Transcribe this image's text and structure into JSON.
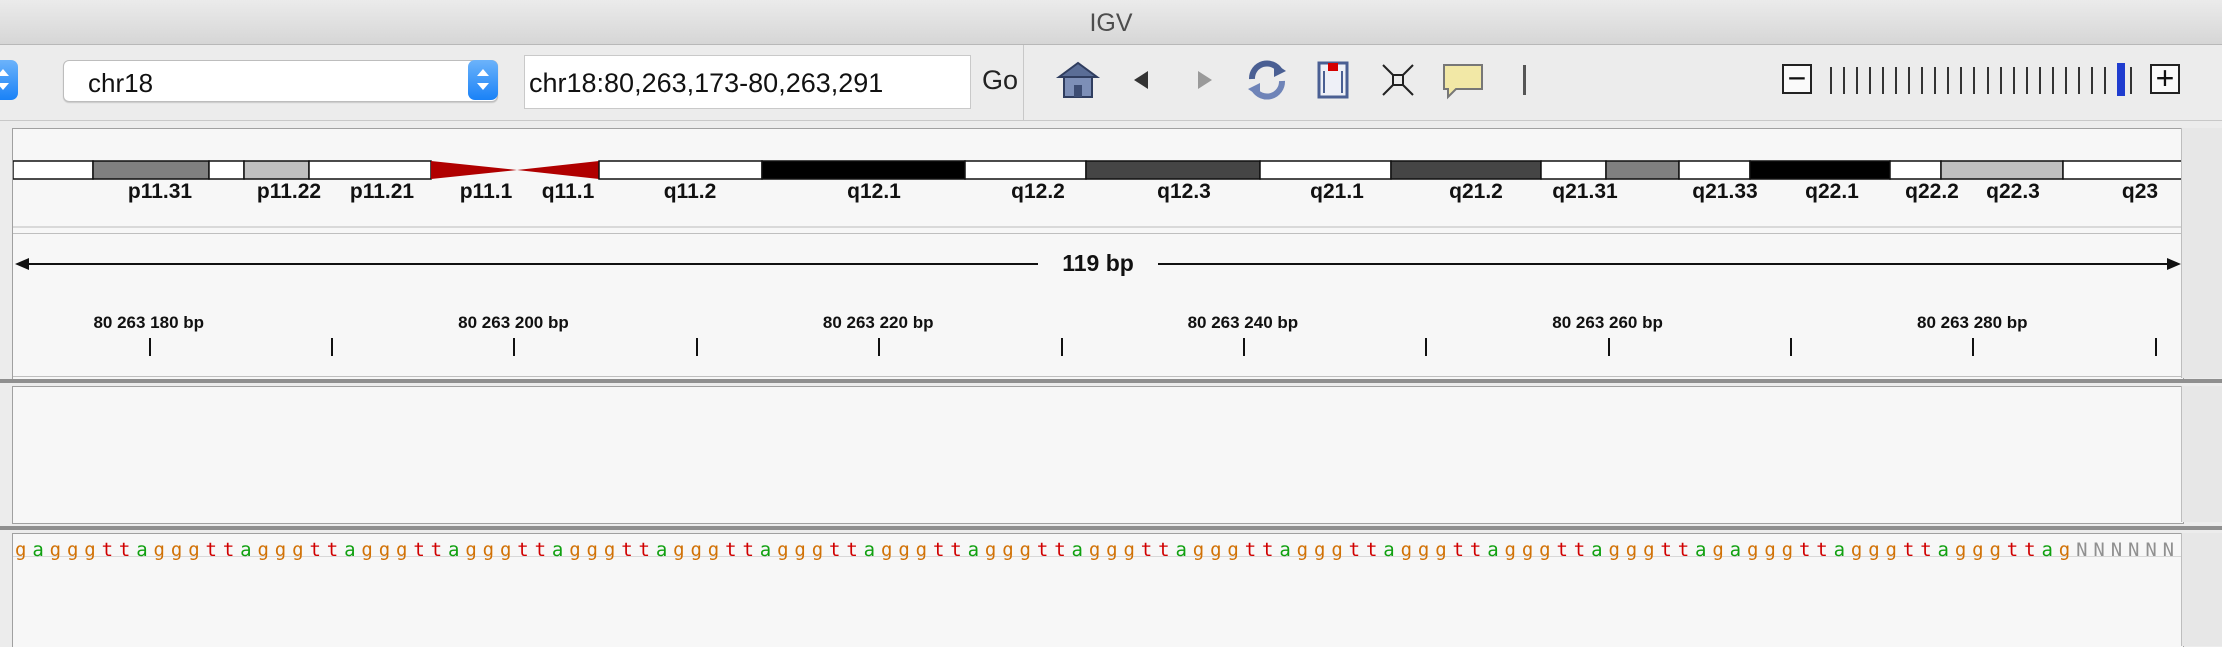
{
  "window": {
    "title": "IGV"
  },
  "toolbar": {
    "genome_value": "",
    "chromosome_value": "chr18",
    "locus_value": "chr18:80,263,173-80,263,291",
    "go_label": "Go",
    "icons": [
      "home-icon",
      "back-icon",
      "forward-icon",
      "refresh-icon",
      "region-icon",
      "resize-icon",
      "popup-icon"
    ],
    "zoom_out_label": "−",
    "zoom_in_label": "+",
    "zoom_level_fraction": 0.96
  },
  "ideogram": {
    "bands": [
      "p11.31",
      "p11.22",
      "p11.21",
      "p11.1",
      "q11.1",
      "q11.2",
      "q12.1",
      "q12.2",
      "q12.3",
      "q21.1",
      "q21.2",
      "q21.31",
      "q21.33",
      "q22.1",
      "q22.2",
      "q22.3",
      "q23"
    ],
    "colors": {
      "gpos100": "#000000",
      "gpos75": "#454545",
      "gpos50": "#808080",
      "gpos25": "#c0c0c0",
      "gneg": "#ffffff",
      "acen": "#b00000"
    }
  },
  "ruler": {
    "span_label": "119 bp",
    "tick_labels": [
      "80 263 180 bp",
      "80 263 200 bp",
      "80 263 220 bp",
      "80 263 240 bp",
      "80 263 260 bp",
      "80 263 280 bp"
    ]
  },
  "sequence": {
    "bases": "gagggttagggttagggttagggttagggttagggttagggttagggttagggttagggttagggttagggttagggttagggttagggttagggttagagggttagggttagggttagNNNNNN",
    "colors": {
      "a": "#10a010",
      "g": "#d17105",
      "t": "#d00000",
      "c": "#0000c0",
      "N": "#909090"
    }
  }
}
